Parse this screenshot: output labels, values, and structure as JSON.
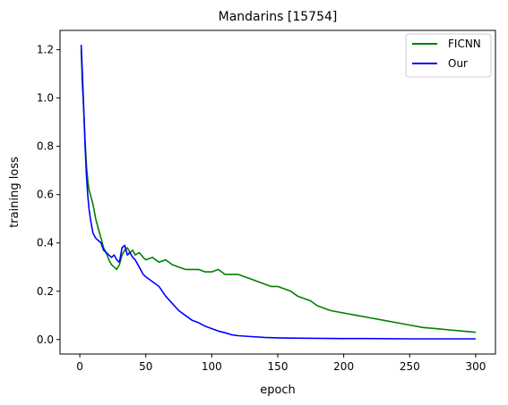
{
  "chart_data": {
    "type": "line",
    "title": "Mandarins [15754]",
    "xlabel": "epoch",
    "ylabel": "training loss",
    "xlim": [
      -15,
      315
    ],
    "ylim": [
      -0.06,
      1.28
    ],
    "xticks": [
      0,
      50,
      100,
      150,
      200,
      250,
      300
    ],
    "yticks": [
      0.0,
      0.2,
      0.4,
      0.6,
      0.8,
      1.0,
      1.2
    ],
    "xtick_labels": [
      "0",
      "50",
      "100",
      "150",
      "200",
      "250",
      "300"
    ],
    "ytick_labels": [
      "0.0",
      "0.2",
      "0.4",
      "0.6",
      "0.8",
      "1.0",
      "1.2"
    ],
    "grid": false,
    "legend_position": "top-right",
    "series": [
      {
        "name": "FICNN",
        "color": "#008000",
        "x": [
          1,
          2,
          3,
          4,
          5,
          6,
          7,
          8,
          9,
          10,
          12,
          14,
          16,
          18,
          20,
          22,
          24,
          26,
          28,
          30,
          32,
          34,
          36,
          38,
          40,
          42,
          45,
          48,
          50,
          55,
          60,
          65,
          70,
          75,
          80,
          85,
          90,
          95,
          100,
          105,
          110,
          115,
          120,
          125,
          130,
          135,
          140,
          145,
          150,
          155,
          160,
          165,
          170,
          175,
          180,
          190,
          200,
          210,
          220,
          230,
          240,
          250,
          260,
          270,
          280,
          290,
          300
        ],
        "y": [
          1.2,
          1.05,
          0.95,
          0.82,
          0.72,
          0.66,
          0.62,
          0.6,
          0.58,
          0.56,
          0.5,
          0.46,
          0.42,
          0.38,
          0.36,
          0.33,
          0.31,
          0.3,
          0.29,
          0.31,
          0.35,
          0.37,
          0.38,
          0.36,
          0.37,
          0.35,
          0.36,
          0.34,
          0.33,
          0.34,
          0.32,
          0.33,
          0.31,
          0.3,
          0.29,
          0.29,
          0.29,
          0.28,
          0.28,
          0.29,
          0.27,
          0.27,
          0.27,
          0.26,
          0.25,
          0.24,
          0.23,
          0.22,
          0.22,
          0.21,
          0.2,
          0.18,
          0.17,
          0.16,
          0.14,
          0.12,
          0.11,
          0.1,
          0.09,
          0.08,
          0.07,
          0.06,
          0.05,
          0.045,
          0.04,
          0.035,
          0.03
        ]
      },
      {
        "name": "Our",
        "color": "#0000ff",
        "x": [
          1,
          2,
          3,
          4,
          5,
          6,
          7,
          8,
          9,
          10,
          12,
          14,
          16,
          18,
          20,
          22,
          24,
          26,
          28,
          30,
          32,
          34,
          36,
          38,
          40,
          42,
          45,
          48,
          50,
          55,
          60,
          65,
          70,
          75,
          80,
          85,
          90,
          95,
          100,
          105,
          110,
          115,
          120,
          130,
          140,
          150,
          160,
          180,
          200,
          220,
          250,
          280,
          300
        ],
        "y": [
          1.22,
          1.1,
          0.95,
          0.8,
          0.68,
          0.6,
          0.54,
          0.5,
          0.47,
          0.44,
          0.42,
          0.41,
          0.4,
          0.37,
          0.36,
          0.35,
          0.34,
          0.35,
          0.33,
          0.32,
          0.38,
          0.39,
          0.35,
          0.36,
          0.34,
          0.33,
          0.3,
          0.27,
          0.26,
          0.24,
          0.22,
          0.18,
          0.15,
          0.12,
          0.1,
          0.08,
          0.07,
          0.055,
          0.045,
          0.035,
          0.028,
          0.02,
          0.016,
          0.012,
          0.009,
          0.007,
          0.006,
          0.005,
          0.004,
          0.004,
          0.003,
          0.003,
          0.003
        ]
      }
    ]
  }
}
